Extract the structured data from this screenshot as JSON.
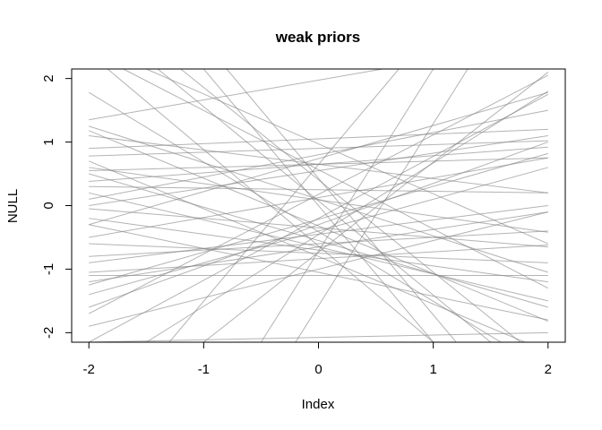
{
  "chart_data": {
    "type": "line",
    "title": "weak priors",
    "xlabel": "Index",
    "ylabel": "NULL",
    "xlim": [
      -2.15,
      2.15
    ],
    "ylim": [
      -2.15,
      2.15
    ],
    "x_ticks": [
      "-2",
      "-1",
      "0",
      "1",
      "2"
    ],
    "y_ticks": [
      "-2",
      "-1",
      "0",
      "1",
      "2"
    ],
    "line_color": "#808080",
    "line_opacity": 0.6,
    "grid": false,
    "legend": "none",
    "series": [
      {
        "x": [
          -2,
          2
        ],
        "y": [
          -2.15,
          1.75
        ]
      },
      {
        "x": [
          -2,
          2
        ],
        "y": [
          -1.6,
          1.0
        ]
      },
      {
        "x": [
          -2,
          2
        ],
        "y": [
          -1.25,
          0.82
        ]
      },
      {
        "x": [
          -2,
          2
        ],
        "y": [
          -1.05,
          -0.62
        ]
      },
      {
        "x": [
          -2,
          2
        ],
        "y": [
          -0.3,
          1.78
        ]
      },
      {
        "x": [
          -2,
          2
        ],
        "y": [
          -0.05,
          -0.65
        ]
      },
      {
        "x": [
          -2,
          2
        ],
        "y": [
          0.3,
          0.2
        ]
      },
      {
        "x": [
          -2,
          2
        ],
        "y": [
          0.6,
          -0.42
        ]
      },
      {
        "x": [
          -2,
          2
        ],
        "y": [
          0.78,
          1.02
        ]
      },
      {
        "x": [
          -2,
          2
        ],
        "y": [
          1.18,
          -1.82
        ]
      },
      {
        "x": [
          -2,
          2
        ],
        "y": [
          1.35,
          2.6
        ]
      },
      {
        "x": [
          -2,
          2
        ],
        "y": [
          1.78,
          -2.6
        ]
      },
      {
        "x": [
          -2,
          2
        ],
        "y": [
          -1.9,
          -0.1
        ]
      },
      {
        "x": [
          -2,
          2
        ],
        "y": [
          -0.2,
          -1.2
        ]
      },
      {
        "x": [
          -2,
          2
        ],
        "y": [
          0.38,
          0.92
        ]
      },
      {
        "x": [
          -2,
          2
        ],
        "y": [
          -1.4,
          0.6
        ]
      },
      {
        "x": [
          -2,
          2
        ],
        "y": [
          0.5,
          -1.6
        ]
      },
      {
        "x": [
          -2,
          2
        ],
        "y": [
          -0.5,
          0.75
        ]
      },
      {
        "x": [
          -2,
          2
        ],
        "y": [
          0.1,
          1.5
        ]
      },
      {
        "x": [
          -2,
          2
        ],
        "y": [
          -2.15,
          -2.0
        ]
      },
      {
        "x": [
          -2,
          2
        ],
        "y": [
          0.9,
          1.2
        ]
      },
      {
        "x": [
          -2,
          2
        ],
        "y": [
          -0.8,
          -0.4
        ]
      },
      {
        "x": [
          -2,
          2
        ],
        "y": [
          -1.7,
          2.05
        ]
      },
      {
        "x": [
          -1.5,
          2
        ],
        "y": [
          2.15,
          -0.6
        ]
      },
      {
        "x": [
          -1.2,
          2
        ],
        "y": [
          2.15,
          -2.5
        ]
      },
      {
        "x": [
          -1.0,
          1.0
        ],
        "y": [
          2.15,
          -2.15
        ]
      },
      {
        "x": [
          -2.2,
          1.0
        ],
        "y": [
          2.7,
          -2.15
        ]
      },
      {
        "x": [
          -0.8,
          1.2
        ],
        "y": [
          2.15,
          -2.15
        ]
      },
      {
        "x": [
          -1.4,
          1.5
        ],
        "y": [
          2.15,
          -2.15
        ]
      },
      {
        "x": [
          -1.5,
          2.0
        ],
        "y": [
          -2.15,
          1.8
        ]
      },
      {
        "x": [
          -1.0,
          2.0
        ],
        "y": [
          -2.15,
          2.1
        ]
      },
      {
        "x": [
          -0.5,
          1.0
        ],
        "y": [
          -2.15,
          2.15
        ]
      },
      {
        "x": [
          -1.3,
          0.7
        ],
        "y": [
          -2.15,
          2.15
        ]
      },
      {
        "x": [
          -0.2,
          1.3
        ],
        "y": [
          -2.15,
          2.15
        ]
      },
      {
        "x": [
          -2.0,
          2.0
        ],
        "y": [
          -0.3,
          -1.8
        ]
      },
      {
        "x": [
          -2.0,
          2.0
        ],
        "y": [
          0.2,
          -1.5
        ]
      },
      {
        "x": [
          -2.0,
          2.0
        ],
        "y": [
          0.7,
          -2.3
        ]
      },
      {
        "x": [
          -2.0,
          2.0
        ],
        "y": [
          -1.2,
          -0.1
        ]
      },
      {
        "x": [
          -2.0,
          2.0
        ],
        "y": [
          0.0,
          1.1
        ]
      },
      {
        "x": [
          -2.0,
          2.0
        ],
        "y": [
          1.1,
          0.2
        ]
      },
      {
        "x": [
          -2.0,
          2.0
        ],
        "y": [
          -0.9,
          0.0
        ]
      },
      {
        "x": [
          -2.0,
          2.0
        ],
        "y": [
          -1.1,
          -1.1
        ]
      },
      {
        "x": [
          -2.0,
          2.0
        ],
        "y": [
          -0.6,
          -0.9
        ]
      },
      {
        "x": [
          -2.0,
          2.0
        ],
        "y": [
          0.55,
          0.75
        ]
      },
      {
        "x": [
          -2.0,
          2.0
        ],
        "y": [
          1.25,
          -1.05
        ]
      },
      {
        "x": [
          -1.7,
          2.0
        ],
        "y": [
          2.15,
          -1.3
        ]
      }
    ]
  }
}
